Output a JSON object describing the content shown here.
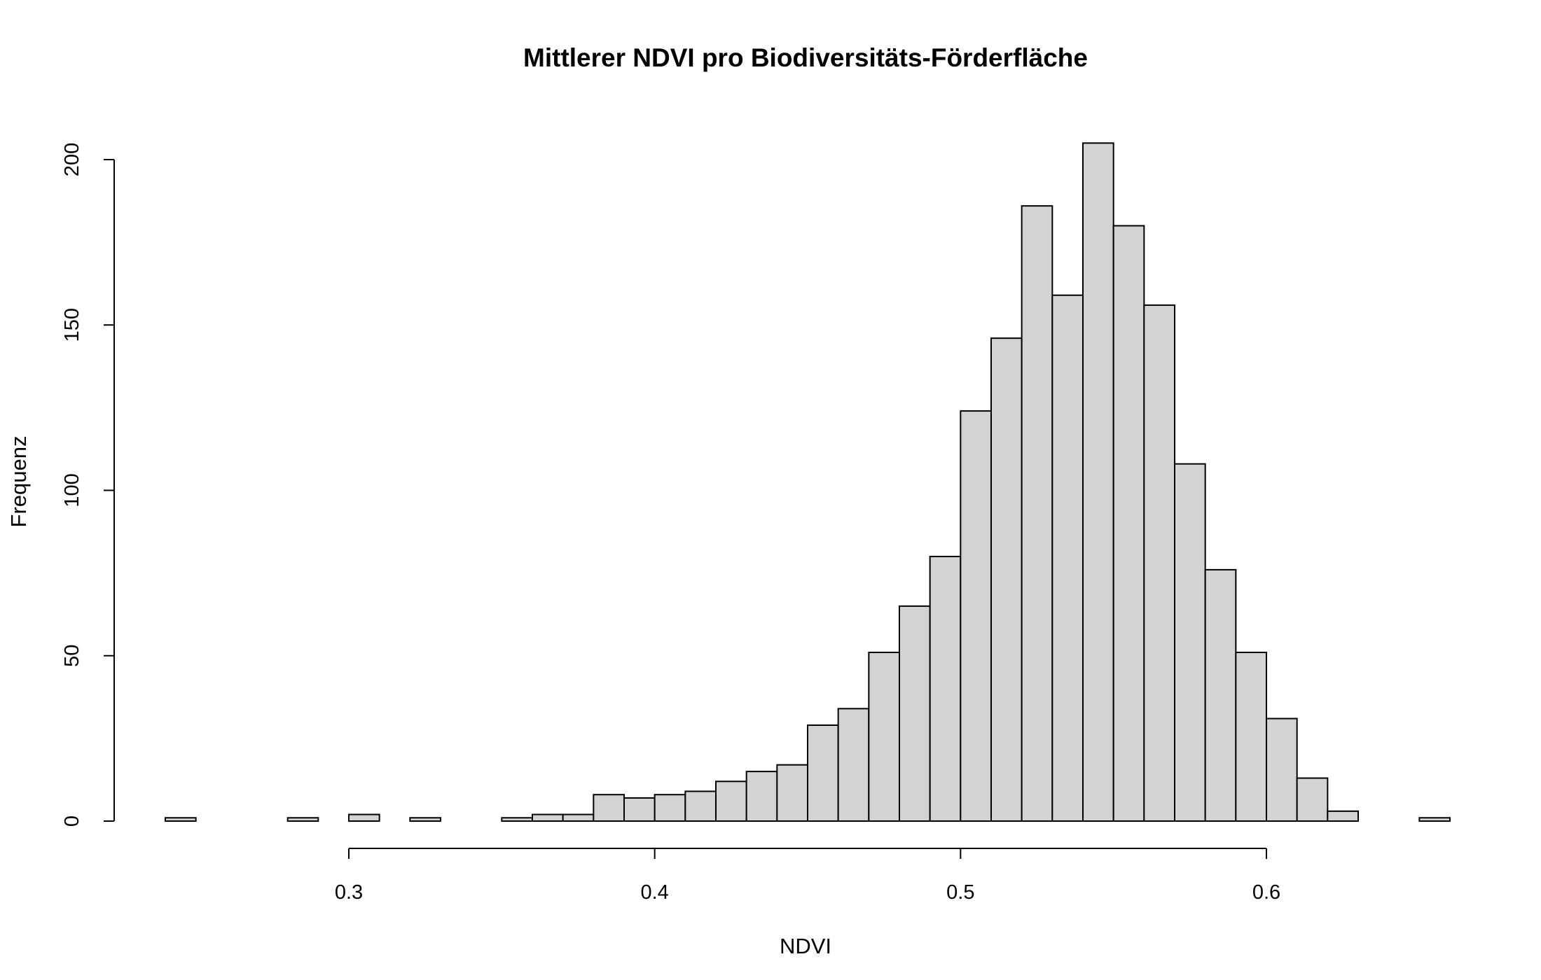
{
  "chart_data": {
    "type": "bar",
    "title": "Mittlerer NDVI pro Biodiversitäts-Förderfläche",
    "xlabel": "NDVI",
    "ylabel": "Frequenz",
    "bin_width": 0.01,
    "x_start": 0.24,
    "values": [
      1,
      0,
      0,
      0,
      1,
      0,
      2,
      0,
      1,
      0,
      0,
      1,
      2,
      2,
      8,
      7,
      8,
      9,
      12,
      15,
      17,
      29,
      34,
      51,
      65,
      80,
      124,
      146,
      186,
      159,
      205,
      180,
      156,
      108,
      76,
      51,
      31,
      13,
      3,
      0,
      0,
      1
    ],
    "xlim": [
      0.24,
      0.66
    ],
    "ylim": [
      0,
      205
    ],
    "x_ticks": [
      0.3,
      0.4,
      0.5,
      0.6
    ],
    "x_tick_labels": [
      "0.3",
      "0.4",
      "0.5",
      "0.6"
    ],
    "y_ticks": [
      0,
      50,
      100,
      150,
      200
    ],
    "y_tick_labels": [
      "0",
      "50",
      "100",
      "150",
      "200"
    ],
    "bar_color": "#d3d3d3",
    "edge_color": "#000000",
    "grid": false
  }
}
